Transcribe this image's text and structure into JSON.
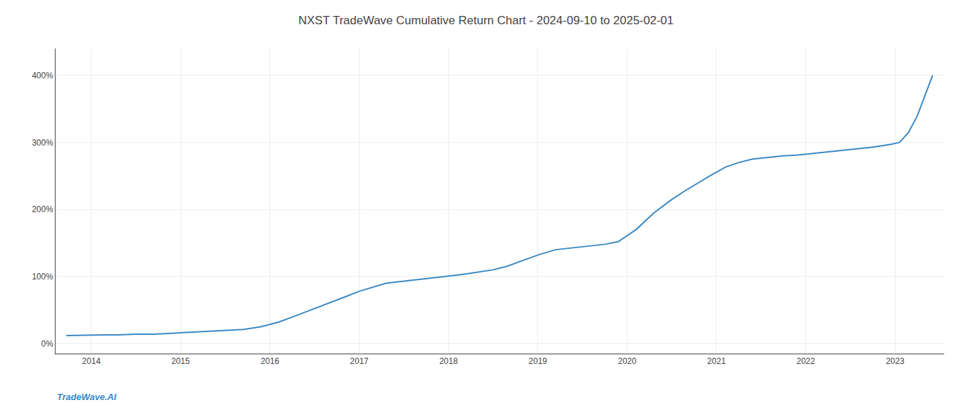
{
  "chart_data": {
    "type": "line",
    "title": "NXST TradeWave Cumulative Return Chart - 2024-09-10 to 2025-02-01",
    "annotations": [
      "TradeWave.AI"
    ],
    "color": "#3a88c4",
    "grid": true,
    "x": [
      2013.72,
      2014.0,
      2014.15,
      2014.3,
      2014.5,
      2014.7,
      2014.85,
      2015.0,
      2015.15,
      2015.3,
      2015.5,
      2015.7,
      2015.9,
      2016.1,
      2016.3,
      2016.5,
      2016.7,
      2016.85,
      2017.0,
      2017.15,
      2017.3,
      2017.5,
      2017.7,
      2017.85,
      2018.0,
      2018.1,
      2018.2,
      2018.35,
      2018.5,
      2018.65,
      2018.8,
      2019.0,
      2019.2,
      2019.4,
      2019.6,
      2019.75,
      2019.9,
      2020.1,
      2020.3,
      2020.5,
      2020.65,
      2020.8,
      2020.95,
      2021.1,
      2021.25,
      2021.4,
      2021.6,
      2021.75,
      2021.9,
      2022.05,
      2022.2,
      2022.35,
      2022.5,
      2022.65,
      2022.75,
      2022.85,
      2022.95,
      2023.05,
      2023.15,
      2023.25,
      2023.35,
      2023.42
    ],
    "values": [
      12,
      13,
      13,
      13,
      14,
      14,
      15,
      16,
      17,
      18,
      19,
      21,
      25,
      32,
      42,
      52,
      62,
      70,
      78,
      84,
      90,
      93,
      96,
      98,
      100,
      102,
      104,
      107,
      110,
      115,
      122,
      132,
      140,
      143,
      146,
      148,
      152,
      170,
      195,
      215,
      228,
      240,
      252,
      263,
      270,
      275,
      278,
      280,
      281,
      283,
      285,
      287,
      289,
      291,
      293,
      295,
      297,
      300,
      315,
      340,
      375,
      400
    ],
    "xlim": [
      2013.6,
      2023.55
    ],
    "xticks": [
      2014,
      2015,
      2016,
      2017,
      2018,
      2019,
      2020,
      2021,
      2022,
      2023
    ],
    "ylim": [
      -15,
      440
    ],
    "yticks": [
      {
        "value": 0,
        "label": "0%"
      },
      {
        "value": 100,
        "label": "100%"
      },
      {
        "value": 200,
        "label": "200%"
      },
      {
        "value": 300,
        "label": "300%"
      },
      {
        "value": 400,
        "label": "400%"
      }
    ]
  }
}
